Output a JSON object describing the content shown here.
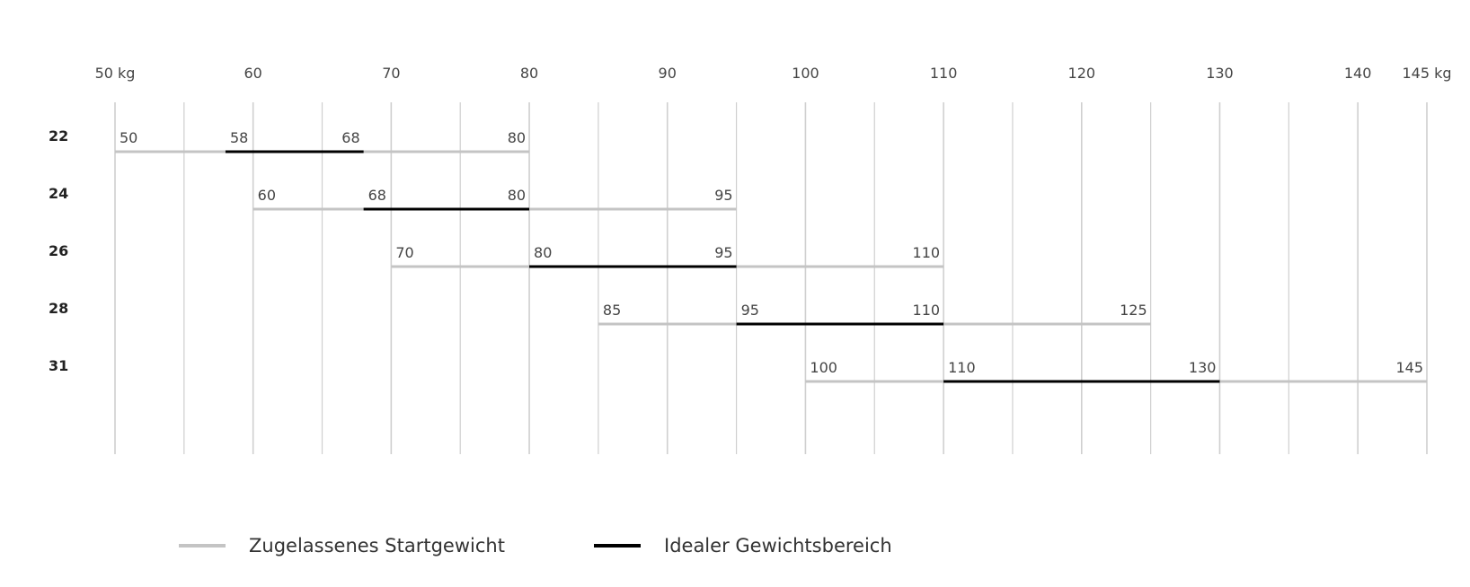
{
  "chart_data": {
    "type": "range",
    "x_axis": {
      "ticks": [
        {
          "value": 50,
          "label": "50 kg"
        },
        {
          "value": 60,
          "label": "60"
        },
        {
          "value": 70,
          "label": "70"
        },
        {
          "value": 80,
          "label": "80"
        },
        {
          "value": 90,
          "label": "90"
        },
        {
          "value": 100,
          "label": "100"
        },
        {
          "value": 110,
          "label": "110"
        },
        {
          "value": 120,
          "label": "120"
        },
        {
          "value": 130,
          "label": "130"
        },
        {
          "value": 140,
          "label": "140"
        },
        {
          "value": 145,
          "label": "145 kg"
        }
      ],
      "gridlines": [
        50,
        55,
        60,
        65,
        70,
        75,
        80,
        85,
        90,
        95,
        100,
        105,
        110,
        115,
        120,
        125,
        130,
        135,
        140,
        145
      ],
      "range": [
        50,
        145
      ]
    },
    "rows": [
      {
        "label": "22",
        "allowed": [
          50,
          80
        ],
        "ideal": [
          58,
          68
        ]
      },
      {
        "label": "24",
        "allowed": [
          60,
          95
        ],
        "ideal": [
          68,
          80
        ]
      },
      {
        "label": "26",
        "allowed": [
          70,
          110
        ],
        "ideal": [
          80,
          95
        ]
      },
      {
        "label": "28",
        "allowed": [
          85,
          125
        ],
        "ideal": [
          95,
          110
        ]
      },
      {
        "label": "31",
        "allowed": [
          100,
          145
        ],
        "ideal": [
          110,
          130
        ]
      }
    ],
    "colors": {
      "allowed": "#c4c4c4",
      "ideal": "#000000",
      "grid": "#cfcfcf"
    },
    "legend": [
      {
        "key": "allowed",
        "label": "Zugelassenes Startgewicht"
      },
      {
        "key": "ideal",
        "label": "Idealer Gewichtsbereich"
      }
    ]
  }
}
